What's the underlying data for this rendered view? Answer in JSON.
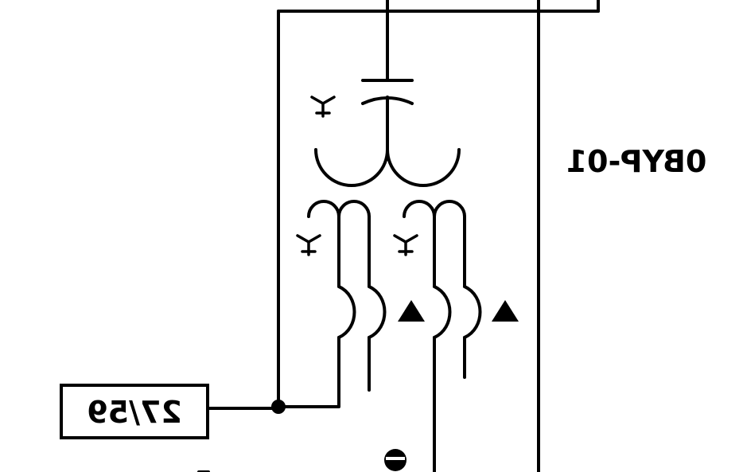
{
  "diagram": {
    "device_label": "0BYP-01",
    "relay_label": "27/59",
    "mirrored": true,
    "colors": {
      "line": "#000000",
      "background": "#ffffff"
    }
  }
}
